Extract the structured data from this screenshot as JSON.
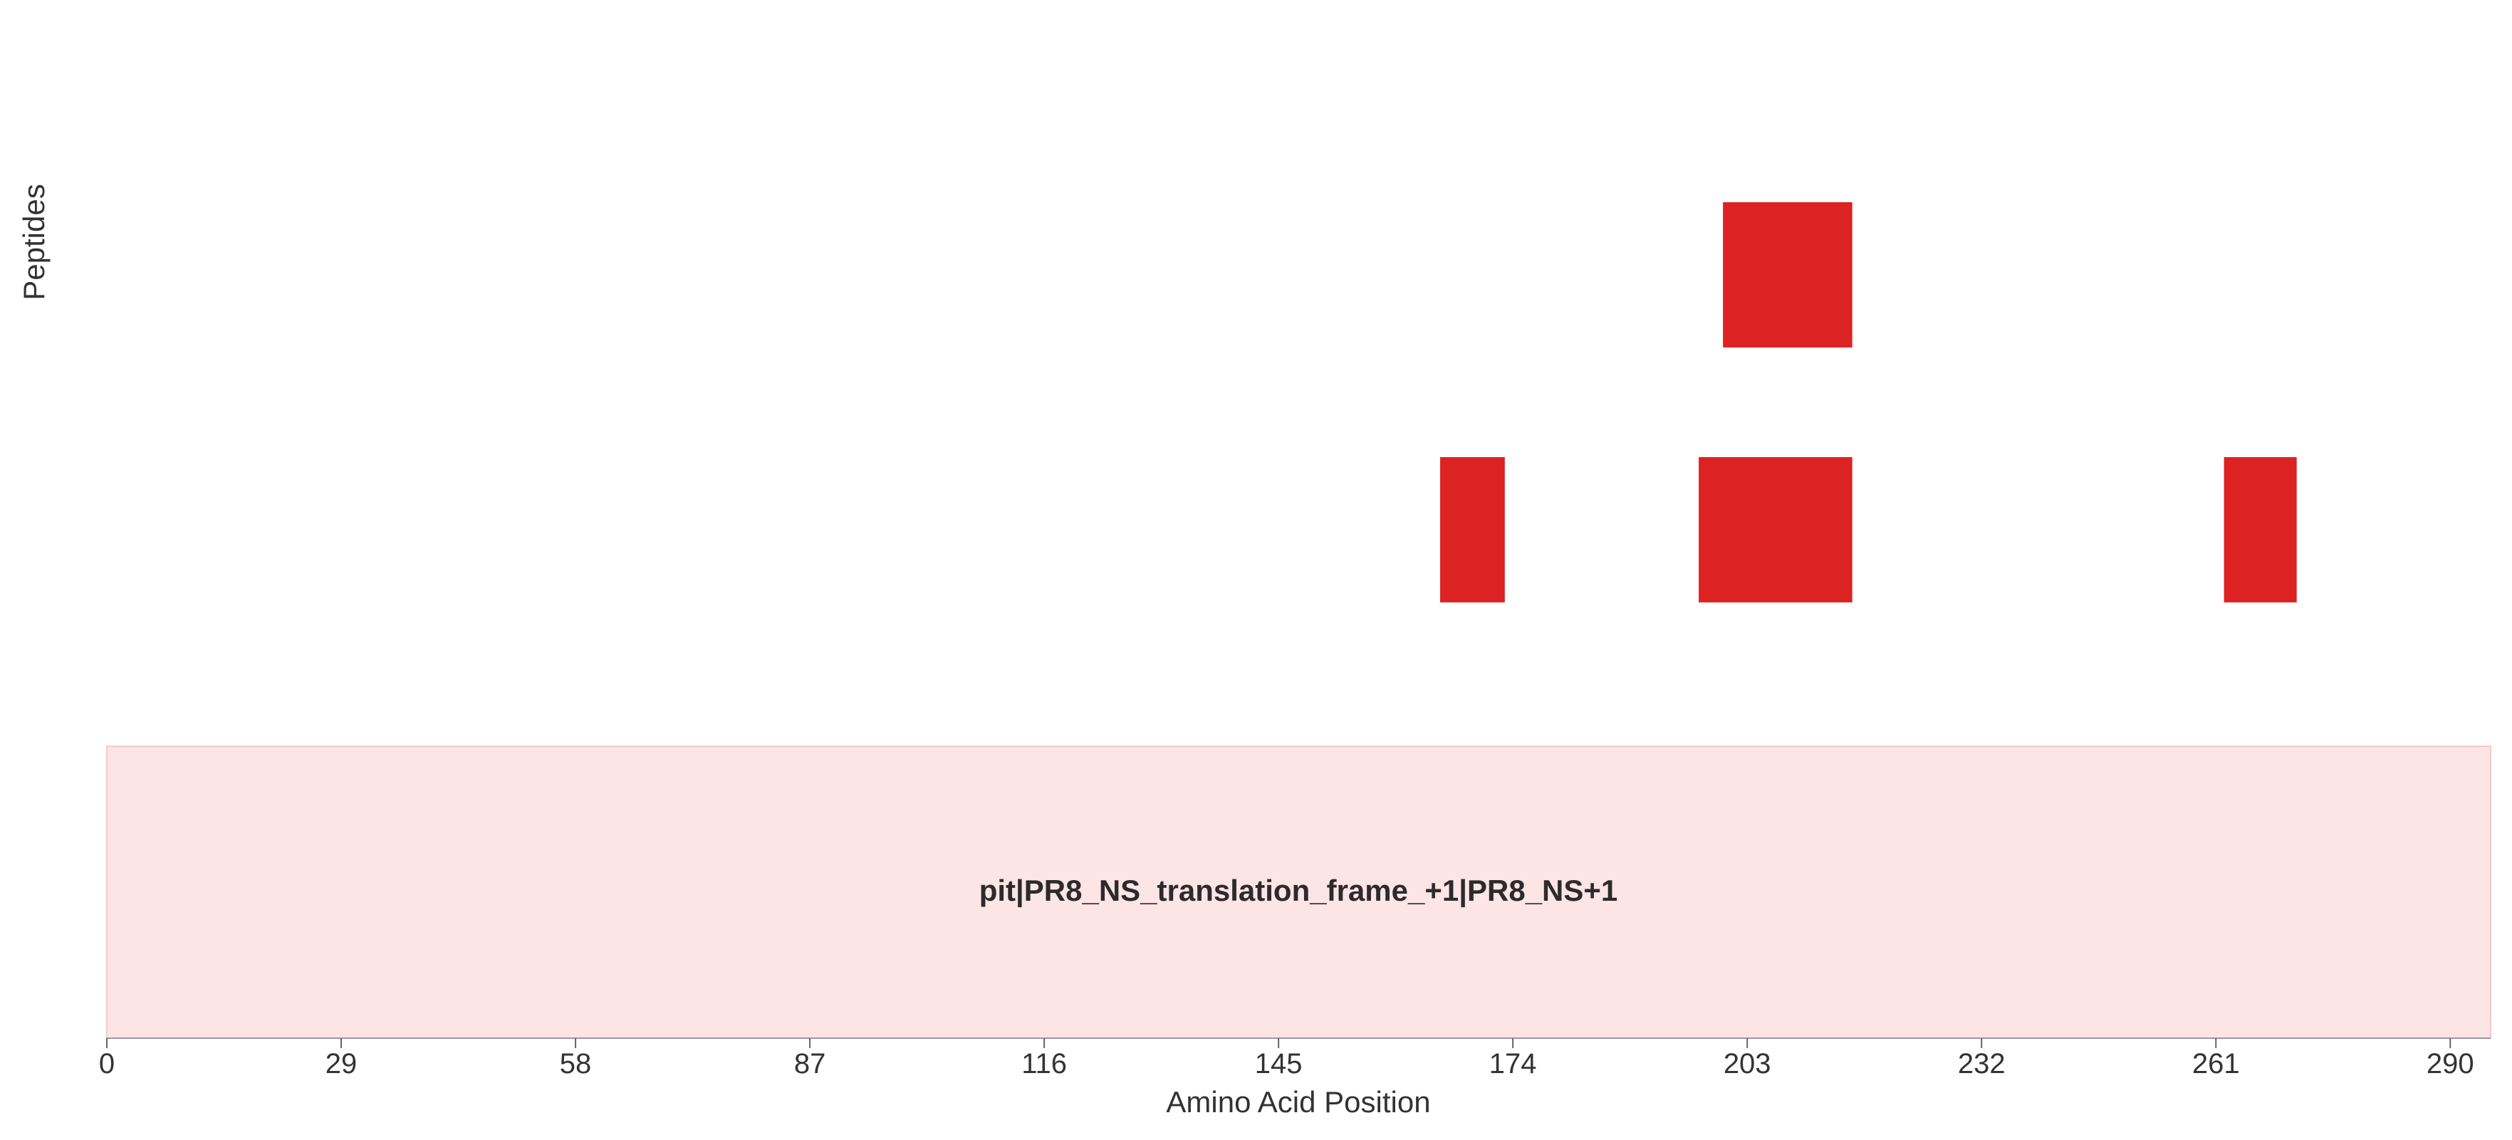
{
  "chart_data": {
    "type": "bar",
    "title": "",
    "xlabel": "Amino Acid Position",
    "ylabel": "Peptides",
    "xlim": [
      0,
      295
    ],
    "x_ticks": [
      "0",
      "29",
      "58",
      "87",
      "116",
      "145",
      "174",
      "203",
      "232",
      "261",
      "290"
    ],
    "grid": false,
    "protein": {
      "label": "pit|PR8_NS_translation_frame_+1|PR8_NS+1",
      "start": 0,
      "end": 295,
      "color": "#fde4e5"
    },
    "peptide_color": "#dd2224",
    "peptide_rows": [
      [
        {
          "start": 200,
          "end": 216
        }
      ],
      [
        {
          "start": 165,
          "end": 173
        },
        {
          "start": 197,
          "end": 216
        },
        {
          "start": 262,
          "end": 271
        }
      ]
    ]
  }
}
